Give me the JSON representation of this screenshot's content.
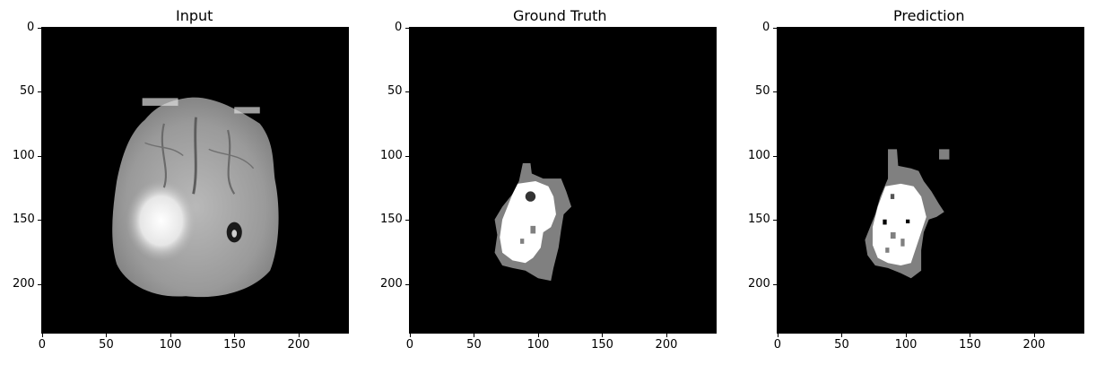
{
  "panels": [
    {
      "title": "Input"
    },
    {
      "title": "Ground Truth"
    },
    {
      "title": "Prediction"
    }
  ],
  "axes": {
    "x_ticks": [
      "0",
      "50",
      "100",
      "150",
      "200"
    ],
    "y_ticks": [
      "0",
      "50",
      "100",
      "150",
      "200"
    ]
  },
  "colors": {
    "background": "#000000",
    "label_gray": "#808080",
    "label_white": "#ffffff"
  }
}
